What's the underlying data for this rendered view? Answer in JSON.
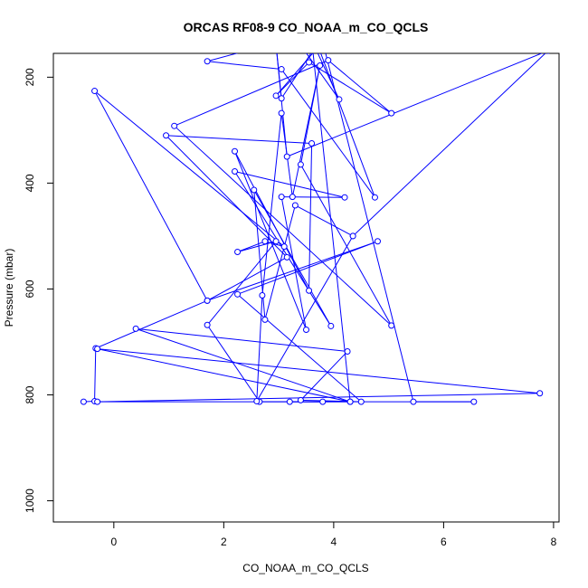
{
  "chart_data": {
    "type": "line",
    "title": "ORCAS RF08-9 CO_NOAA_m_CO_QCLS",
    "xlabel": "CO_NOAA_m_CO_QCLS",
    "ylabel": "Pressure (mbar)",
    "xlim": [
      -1.1,
      8.1
    ],
    "ylim": [
      1040,
      155
    ],
    "y_reversed": true,
    "x_ticks": [
      0,
      2,
      4,
      6,
      8
    ],
    "y_ticks": [
      200,
      400,
      600,
      800,
      1000
    ],
    "grid": false,
    "line_color": "#0000ff",
    "marker": "open-circle",
    "series": [
      {
        "values": [
          [
            -0.55,
            813
          ],
          [
            -0.35,
            812
          ],
          [
            -0.33,
            712
          ],
          [
            1.7,
            622
          ],
          [
            -0.35,
            226
          ],
          [
            3.1,
            520
          ],
          [
            2.75,
            510
          ],
          [
            2.25,
            530
          ],
          [
            2.95,
            510
          ],
          [
            1.7,
            668
          ],
          [
            2.65,
            813
          ],
          [
            3.8,
            813
          ],
          [
            3.2,
            813
          ],
          [
            4.3,
            813
          ],
          [
            0.4,
            675
          ],
          [
            4.25,
            718
          ],
          [
            3.4,
            810
          ],
          [
            4.5,
            813
          ],
          [
            2.25,
            610
          ],
          [
            4.8,
            510
          ],
          [
            1.7,
            622
          ],
          [
            3.15,
            540
          ],
          [
            0.95,
            310
          ],
          [
            3.6,
            325
          ],
          [
            3.55,
            603
          ],
          [
            2.2,
            340
          ],
          [
            3.5,
            677
          ],
          [
            3.05,
            426
          ],
          [
            4.2,
            427
          ],
          [
            2.2,
            378
          ],
          [
            3.95,
            670
          ],
          [
            2.55,
            413
          ],
          [
            2.75,
            658
          ],
          [
            3.3,
            442
          ],
          [
            4.35,
            500
          ],
          [
            2.6,
            812
          ],
          [
            2.7,
            612
          ],
          [
            3.05,
            268
          ],
          [
            3.25,
            426
          ],
          [
            3.75,
            178
          ],
          [
            3.4,
            365
          ],
          [
            5.05,
            669
          ],
          [
            1.1,
            292
          ],
          [
            3.9,
            168
          ],
          [
            5.05,
            268
          ],
          [
            3.55,
            172
          ],
          [
            2.95,
            235
          ],
          [
            3.8,
            133
          ],
          [
            5.45,
            813
          ],
          [
            6.55,
            813
          ],
          [
            -0.3,
            813
          ],
          [
            7.75,
            797
          ],
          [
            -0.3,
            713
          ],
          [
            4.3,
            813
          ],
          [
            3.6,
            130
          ],
          [
            4.1,
            242
          ],
          [
            3.3,
            125
          ],
          [
            1.7,
            170
          ],
          [
            3.05,
            185
          ],
          [
            4.75,
            427
          ],
          [
            3.7,
            137
          ],
          [
            3.05,
            240
          ],
          [
            2.95,
            138
          ],
          [
            3.15,
            350
          ],
          [
            7.9,
            150
          ],
          [
            4.35,
            500
          ]
        ]
      }
    ]
  }
}
